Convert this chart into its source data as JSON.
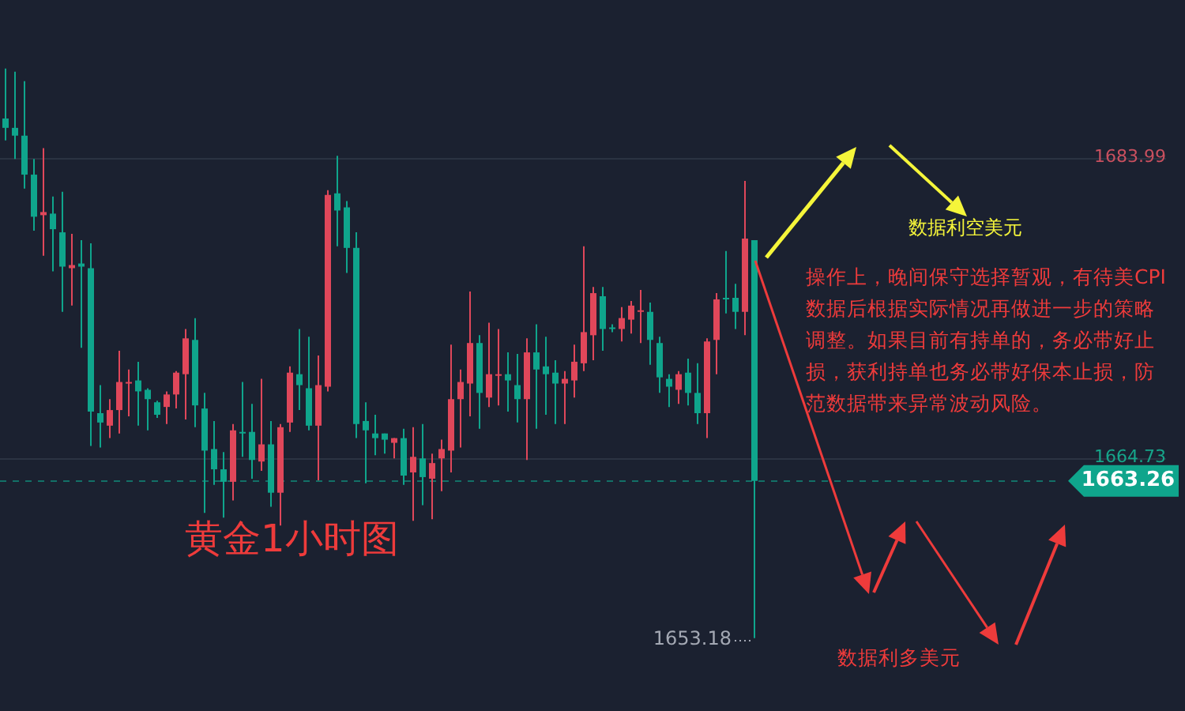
{
  "chart_data": {
    "type": "candlestick",
    "categories": [
      null,
      null,
      null,
      null,
      null,
      null,
      null,
      null,
      null,
      null,
      null,
      null,
      null,
      null,
      null,
      null,
      null,
      null,
      null,
      null,
      null,
      null,
      null,
      null,
      null,
      null,
      null,
      null,
      null,
      null,
      null,
      null,
      null,
      null,
      null,
      null,
      null,
      null,
      null,
      null,
      null,
      null,
      null,
      null,
      null,
      null,
      null,
      null,
      null,
      null,
      null,
      null,
      null,
      null,
      null,
      null,
      null,
      null,
      null,
      null,
      null,
      null,
      null,
      null,
      null,
      null,
      null,
      null,
      null,
      null,
      null,
      null,
      null,
      null,
      null,
      null,
      null,
      null,
      null,
      null,
      null,
      null,
      null,
      null,
      null,
      null,
      null,
      null,
      null,
      null,
      null,
      null,
      null,
      null,
      null,
      null,
      null,
      null,
      null,
      null,
      null,
      null,
      null,
      null,
      null,
      null,
      null,
      null,
      null,
      null,
      null,
      null,
      null,
      null,
      null,
      null,
      null,
      null,
      null,
      null,
      null,
      null,
      null,
      null,
      null
    ],
    "ohlc": [
      [
        1686.5,
        1689.7,
        1685.1,
        1685.9
      ],
      [
        1685.9,
        1689.5,
        1683.9,
        1685.4
      ],
      [
        1685.4,
        1688.9,
        1682.0,
        1682.9
      ],
      [
        1682.9,
        1683.9,
        1679.3,
        1680.2
      ],
      [
        1680.3,
        1684.6,
        1677.7,
        1680.5
      ],
      [
        1680.4,
        1681.5,
        1676.7,
        1679.4
      ],
      [
        1679.2,
        1681.8,
        1674.1,
        1677.0
      ],
      [
        1676.9,
        1679.1,
        1674.5,
        1677.1
      ],
      [
        1677.2,
        1678.7,
        1671.8,
        1677.0
      ],
      [
        1676.9,
        1678.5,
        1665.5,
        1667.7
      ],
      [
        1667.6,
        1669.4,
        1665.4,
        1667.0
      ],
      [
        1666.8,
        1668.5,
        1666.0,
        1667.8
      ],
      [
        1667.8,
        1671.6,
        1666.3,
        1669.6
      ],
      [
        1669.5,
        1670.4,
        1667.4,
        1669.6
      ],
      [
        1669.7,
        1670.9,
        1666.8,
        1669.0
      ],
      [
        1669.1,
        1669.2,
        1666.5,
        1668.5
      ],
      [
        1668.3,
        1668.4,
        1667.3,
        1667.5
      ],
      [
        1668.0,
        1669.0,
        1666.9,
        1668.8
      ],
      [
        1668.8,
        1670.3,
        1667.9,
        1670.2
      ],
      [
        1670.1,
        1673.0,
        1667.2,
        1672.4
      ],
      [
        1672.3,
        1673.7,
        1666.7,
        1668.1
      ],
      [
        1667.9,
        1668.9,
        1661.2,
        1665.2
      ],
      [
        1665.3,
        1667.1,
        1663.0,
        1664.0
      ],
      [
        1664.0,
        1665.1,
        1660.9,
        1663.2
      ],
      [
        1663.2,
        1666.9,
        1662.0,
        1666.5
      ],
      [
        1666.4,
        1669.6,
        1664.8,
        1666.3
      ],
      [
        1666.4,
        1668.2,
        1663.4,
        1664.6
      ],
      [
        1664.5,
        1669.8,
        1663.9,
        1665.6
      ],
      [
        1665.6,
        1667.1,
        1661.6,
        1662.5
      ],
      [
        1662.5,
        1666.9,
        1660.4,
        1666.7
      ],
      [
        1667.0,
        1670.6,
        1666.4,
        1670.2
      ],
      [
        1670.1,
        1673.0,
        1667.8,
        1669.4
      ],
      [
        1669.2,
        1672.5,
        1666.5,
        1666.8
      ],
      [
        1666.8,
        1671.3,
        1663.3,
        1669.4
      ],
      [
        1669.3,
        1681.9,
        1669.0,
        1681.6
      ],
      [
        1681.7,
        1684.1,
        1678.3,
        1680.6
      ],
      [
        1680.8,
        1681.2,
        1676.6,
        1678.2
      ],
      [
        1678.2,
        1679.2,
        1666.0,
        1666.9
      ],
      [
        1667.1,
        1668.3,
        1663.1,
        1666.5
      ],
      [
        1666.3,
        1667.5,
        1664.9,
        1666.0
      ],
      [
        1666.3,
        1666.3,
        1665.0,
        1665.9
      ],
      [
        1665.7,
        1666.0,
        1664.7,
        1666.0
      ],
      [
        1666.0,
        1666.6,
        1663.0,
        1663.6
      ],
      [
        1663.8,
        1666.7,
        1660.7,
        1664.8
      ],
      [
        1664.7,
        1666.9,
        1661.7,
        1663.5
      ],
      [
        1663.4,
        1665.0,
        1660.8,
        1664.4
      ],
      [
        1664.7,
        1665.9,
        1662.6,
        1665.3
      ],
      [
        1665.2,
        1672.0,
        1663.8,
        1668.5
      ],
      [
        1668.5,
        1670.4,
        1665.4,
        1669.6
      ],
      [
        1669.5,
        1675.4,
        1667.4,
        1672.1
      ],
      [
        1672.1,
        1672.6,
        1666.6,
        1668.9
      ],
      [
        1668.6,
        1673.4,
        1668.0,
        1670.1
      ],
      [
        1670.0,
        1673.0,
        1668.1,
        1670.1
      ],
      [
        1670.1,
        1671.5,
        1667.7,
        1669.7
      ],
      [
        1669.4,
        1671.4,
        1667.0,
        1668.5
      ],
      [
        1668.5,
        1672.4,
        1664.6,
        1671.5
      ],
      [
        1671.5,
        1673.3,
        1666.6,
        1670.4
      ],
      [
        1670.6,
        1672.5,
        1667.5,
        1670.1
      ],
      [
        1670.2,
        1671.0,
        1666.9,
        1669.5
      ],
      [
        1669.5,
        1670.3,
        1666.9,
        1669.8
      ],
      [
        1669.7,
        1672.0,
        1668.6,
        1670.9
      ],
      [
        1670.8,
        1678.3,
        1670.3,
        1672.8
      ],
      [
        1672.6,
        1675.7,
        1671.0,
        1675.3
      ],
      [
        1675.1,
        1675.7,
        1671.6,
        1673.0
      ],
      [
        1673.1,
        1673.3,
        1672.8,
        1673.0
      ],
      [
        1673.0,
        1674.4,
        1672.2,
        1673.7
      ],
      [
        1673.6,
        1674.8,
        1672.7,
        1674.5
      ],
      [
        1674.1,
        1675.5,
        1672.1,
        1674.2
      ],
      [
        1674.1,
        1674.7,
        1670.7,
        1672.3
      ],
      [
        1672.1,
        1672.5,
        1668.9,
        1669.9
      ],
      [
        1669.8,
        1670.1,
        1668.0,
        1669.3
      ],
      [
        1669.1,
        1670.3,
        1668.2,
        1670.1
      ],
      [
        1670.2,
        1671.1,
        1668.1,
        1668.9
      ],
      [
        1668.9,
        1670.8,
        1666.9,
        1667.6
      ],
      [
        1667.6,
        1672.4,
        1666.0,
        1672.2
      ],
      [
        1672.3,
        1675.3,
        1670.1,
        1674.9
      ],
      [
        1675.0,
        1678.0,
        1674.0,
        1674.9
      ],
      [
        1675.0,
        1675.9,
        1673.0,
        1674.1
      ],
      [
        1674.1,
        1682.5,
        1672.6,
        1678.8
      ],
      [
        1678.7,
        1678.7,
        1653.18,
        1663.26
      ],
      null,
      null,
      null,
      null,
      null,
      null,
      null,
      null,
      null,
      null,
      null,
      null,
      null,
      null,
      null,
      null,
      null,
      null,
      null,
      null,
      null,
      null,
      null,
      null,
      null,
      null,
      null,
      null,
      null,
      null,
      null,
      null,
      null,
      null,
      null,
      null,
      null,
      null,
      null,
      null,
      null,
      null,
      null,
      null,
      null
    ],
    "colors": [
      "#0fa58c",
      "#0fa58c",
      "#0fa58c",
      "#0fa58c",
      "#e0475a",
      "#0fa58c",
      "#0fa58c",
      "#e0475a",
      "#0fa58c",
      "#0fa58c",
      "#0fa58c",
      "#e0475a",
      "#e0475a",
      "#e0475a",
      "#0fa58c",
      "#0fa58c",
      "#0fa58c",
      "#e0475a",
      "#e0475a",
      "#e0475a",
      "#0fa58c",
      "#0fa58c",
      "#0fa58c",
      "#0fa58c",
      "#e0475a",
      "#0fa58c",
      "#0fa58c",
      "#e0475a",
      "#0fa58c",
      "#e0475a",
      "#e0475a",
      "#0fa58c",
      "#0fa58c",
      "#e0475a",
      "#e0475a",
      "#0fa58c",
      "#0fa58c",
      "#0fa58c",
      "#0fa58c",
      "#0fa58c",
      "#0fa58c",
      "#e0475a",
      "#0fa58c",
      "#e0475a",
      "#0fa58c",
      "#e0475a",
      "#e0475a",
      "#e0475a",
      "#e0475a",
      "#e0475a",
      "#0fa58c",
      "#e0475a",
      "#e0475a",
      "#0fa58c",
      "#0fa58c",
      "#e0475a",
      "#0fa58c",
      "#0fa58c",
      "#0fa58c",
      "#e0475a",
      "#e0475a",
      "#e0475a",
      "#e0475a",
      "#0fa58c",
      "#0fa58c",
      "#e0475a",
      "#e0475a",
      "#e0475a",
      "#0fa58c",
      "#0fa58c",
      "#0fa58c",
      "#e0475a",
      "#0fa58c",
      "#0fa58c",
      "#e0475a",
      "#e0475a",
      "#0fa58c",
      "#0fa58c",
      "#e0475a",
      "#0fa58c",
      null,
      null,
      null,
      null,
      null,
      null,
      null,
      null,
      null,
      null,
      null,
      null,
      null,
      null,
      null,
      null,
      null,
      null,
      null,
      null,
      null,
      null,
      null,
      null,
      null,
      null,
      null,
      null,
      null,
      null,
      null,
      null,
      null,
      null,
      null,
      null,
      null,
      null,
      null,
      null,
      null,
      null,
      null,
      null,
      null
    ],
    "ylim": [
      1648.5,
      1694.1
    ],
    "yticks": [
      1683.99,
      1664.73
    ],
    "grid": "y",
    "tick_labels": "y",
    "ref_lines": [
      {
        "axis": "y",
        "value": 1663.26,
        "label": "1663.26",
        "color": "#0fa58c",
        "line_style": "dashed"
      }
    ],
    "annotations": [
      "数据利空美元",
      "操作上，晚间保守选择暂观，有待美CPI数据后根据实际情况再做进一步的策略调整。如果目前有持单的，务必带好止损，获利持单也务必带好保本止损，防范数据带来异常波动风险。",
      "黄金1小时图",
      "1653.18",
      "数据利多美元"
    ]
  }
}
